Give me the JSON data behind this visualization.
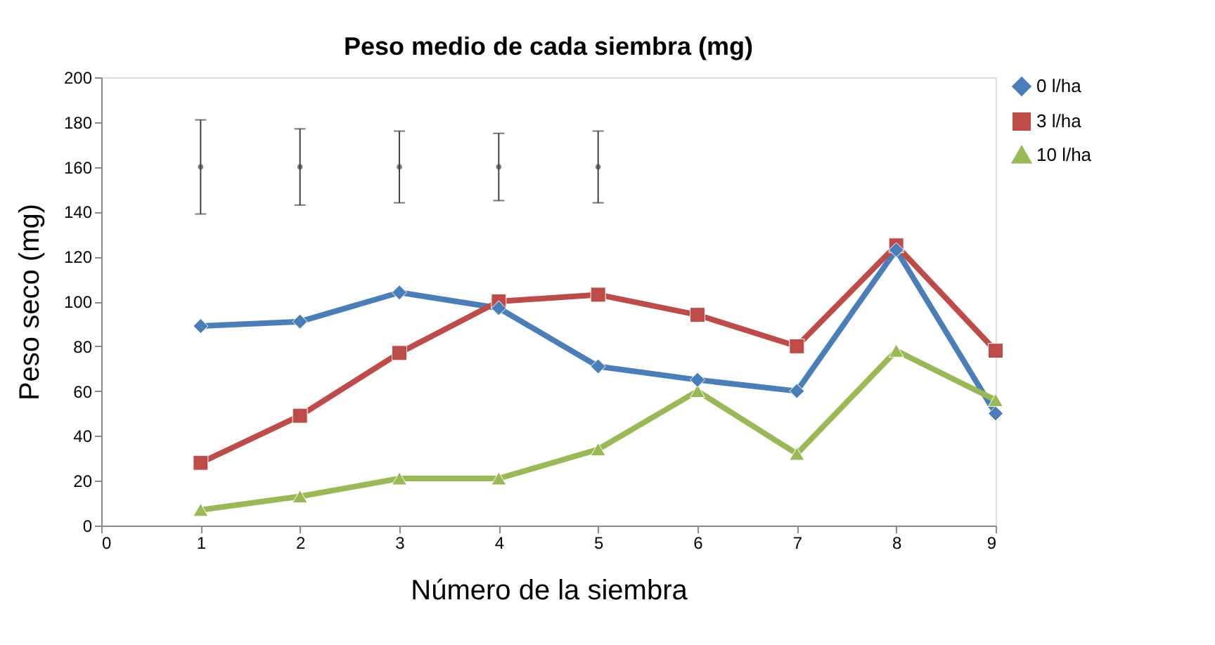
{
  "chart_data": {
    "type": "line",
    "title": "Peso medio de cada siembra (mg)",
    "xlabel": "Número de la siembra",
    "ylabel": "Peso seco (mg)",
    "x": [
      1,
      2,
      3,
      4,
      5,
      6,
      7,
      8,
      9
    ],
    "series": [
      {
        "name": "0 l/ha",
        "color": "#4a7ebb",
        "marker": "diamond",
        "values": [
          89,
          91,
          104,
          97,
          71,
          65,
          60,
          123,
          50
        ]
      },
      {
        "name": "3 l/ha",
        "color": "#be4b48",
        "marker": "square",
        "values": [
          28,
          49,
          77,
          100,
          103,
          94,
          80,
          125,
          78
        ]
      },
      {
        "name": "10 l/ha",
        "color": "#98b954",
        "marker": "triangle",
        "values": [
          7,
          13,
          21,
          21,
          34,
          60,
          32,
          78,
          56
        ]
      },
      {
        "type": "scatter",
        "marker": "none",
        "color": "#404040",
        "x": [
          1,
          2,
          3,
          4,
          5
        ],
        "values": [
          160,
          160,
          160,
          160,
          160
        ],
        "errors": [
          21,
          17,
          16,
          15,
          16
        ]
      }
    ],
    "xlim": [
      0,
      9
    ],
    "xticks": [
      0,
      1,
      2,
      3,
      4,
      5,
      6,
      7,
      8,
      9
    ],
    "ylim": [
      0,
      200
    ],
    "yticks": [
      0,
      20,
      40,
      60,
      80,
      100,
      120,
      140,
      160,
      180,
      200
    ],
    "grid": false,
    "legend": "top right",
    "line_style": "solid"
  }
}
